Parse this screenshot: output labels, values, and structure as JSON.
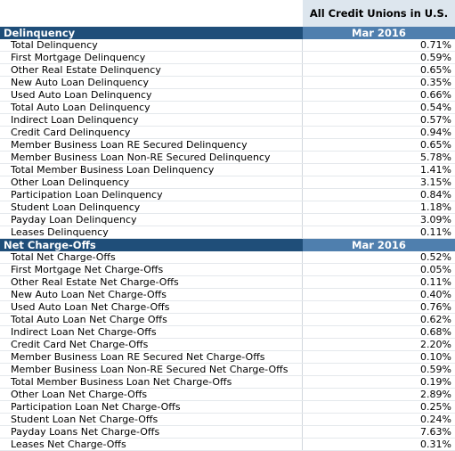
{
  "header": {
    "title": "All Credit Unions in U.S."
  },
  "sections": [
    {
      "title": "Delinquency",
      "period": "Mar 2016",
      "rows": [
        [
          "Total Delinquency",
          "0.71%"
        ],
        [
          "First Mortgage Delinquency",
          "0.59%"
        ],
        [
          "Other Real Estate Delinquency",
          "0.65%"
        ],
        [
          "New Auto Loan Delinquency",
          "0.35%"
        ],
        [
          "Used Auto Loan Delinquency",
          "0.66%"
        ],
        [
          "Total Auto Loan Delinquency",
          "0.54%"
        ],
        [
          "Indirect Loan Delinquency",
          "0.57%"
        ],
        [
          "Credit Card Delinquency",
          "0.94%"
        ],
        [
          "Member Business Loan RE Secured Delinquency",
          "0.65%"
        ],
        [
          "Member Business Loan Non-RE Secured Delinquency",
          "5.78%"
        ],
        [
          "Total Member Business Loan Delinquency",
          "1.41%"
        ],
        [
          "Other Loan Delinquency",
          "3.15%"
        ],
        [
          "Participation Loan Delinquency",
          "0.84%"
        ],
        [
          "Student Loan Delinquency",
          "1.18%"
        ],
        [
          "Payday Loan Delinquency",
          "3.09%"
        ],
        [
          "Leases Delinquency",
          "0.11%"
        ]
      ]
    },
    {
      "title": "Net Charge-Offs",
      "period": "Mar 2016",
      "rows": [
        [
          "Total Net Charge-Offs",
          "0.52%"
        ],
        [
          "First Mortgage Net Charge-Offs",
          "0.05%"
        ],
        [
          "Other Real Estate Net Charge-Offs",
          "0.11%"
        ],
        [
          "New Auto Loan Net Charge-Offs",
          "0.40%"
        ],
        [
          "Used Auto Loan Net Charge-Offs",
          "0.76%"
        ],
        [
          "Total Auto Loan Net Charge Offs",
          "0.62%"
        ],
        [
          "Indirect Loan Net Charge-Offs",
          "0.68%"
        ],
        [
          "Credit Card Net Charge-Offs",
          "2.20%"
        ],
        [
          "Member Business Loan RE Secured Net Charge-Offs",
          "0.10%"
        ],
        [
          "Member Business Loan Non-RE Secured Net Charge-Offs",
          "0.59%"
        ],
        [
          "Total Member Business Loan Net Charge-Offs",
          "0.19%"
        ],
        [
          "Other Loan Net Charge-Offs",
          "2.89%"
        ],
        [
          "Participation Loan Net Charge-Offs",
          "0.25%"
        ],
        [
          "Student Loan Net Charge-Offs",
          "0.24%"
        ],
        [
          "Payday Loans Net Charge-Offs",
          "7.63%"
        ],
        [
          "Leases Net Charge-Offs",
          "0.31%"
        ]
      ]
    }
  ]
}
